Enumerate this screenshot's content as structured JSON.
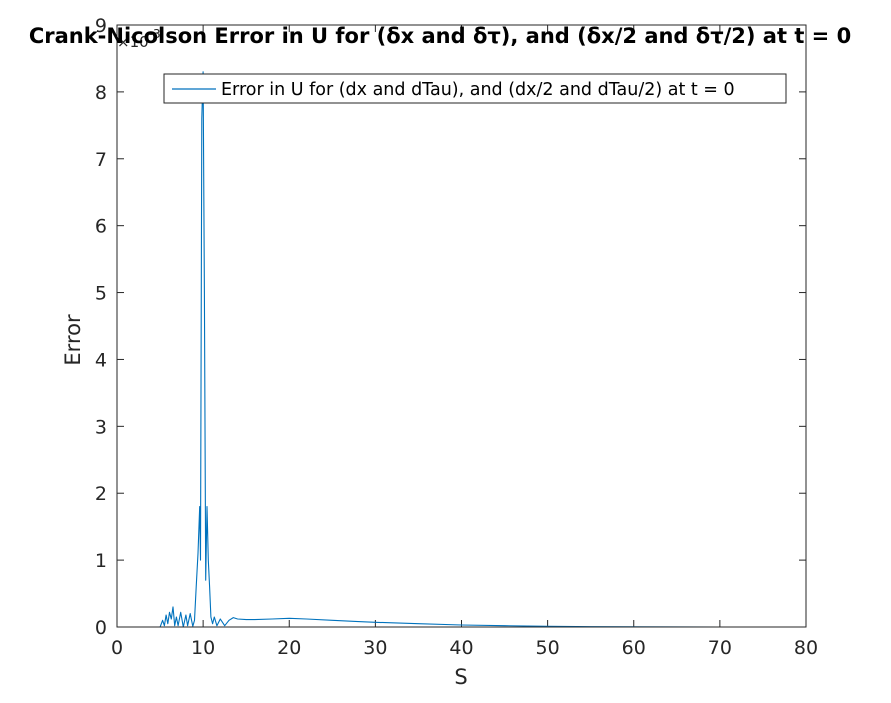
{
  "chart_data": {
    "type": "line",
    "title": "Crank-Nicolson Error in U for (δx and δτ), and (δx/2 and δτ/2) at t = 0",
    "xlabel": "S",
    "ylabel": "Error",
    "y_exponent_base": "×10",
    "y_exponent_power": "-3",
    "xlim": [
      0,
      80
    ],
    "ylim": [
      0,
      9
    ],
    "xticks": [
      "0",
      "10",
      "20",
      "30",
      "40",
      "50",
      "60",
      "70",
      "80"
    ],
    "yticks": [
      "0",
      "1",
      "2",
      "3",
      "4",
      "5",
      "6",
      "7",
      "8",
      "9"
    ],
    "grid": false,
    "legend_position": "top-right",
    "color": "#0072bd",
    "series": [
      {
        "name": "Error in U for (dx and dTau), and (dx/2 and dTau/2) at t = 0",
        "x": [
          0,
          5.0,
          5.3,
          5.5,
          5.7,
          5.9,
          6.1,
          6.3,
          6.5,
          6.7,
          6.9,
          7.1,
          7.4,
          7.7,
          8.0,
          8.2,
          8.5,
          8.8,
          9.0,
          9.2,
          9.4,
          9.6,
          9.7,
          9.85,
          10.0,
          10.15,
          10.3,
          10.45,
          10.6,
          10.75,
          10.9,
          11.1,
          11.3,
          11.6,
          12.0,
          12.5,
          13.0,
          13.5,
          14.0,
          15.0,
          16.0,
          18.0,
          20.0,
          22.0,
          25.0,
          28.0,
          30.0,
          35.0,
          40.0,
          45.0,
          50.0,
          55.0,
          60.0,
          65.0,
          70.0,
          74.0
        ],
        "y": [
          0,
          0.0,
          0.1,
          0.02,
          0.18,
          0.05,
          0.22,
          0.12,
          0.3,
          0.02,
          0.15,
          0.02,
          0.22,
          0.0,
          0.18,
          0.02,
          0.2,
          0.01,
          0.1,
          0.6,
          1.1,
          1.8,
          1.0,
          7.6,
          8.3,
          5.0,
          0.7,
          1.8,
          1.0,
          0.6,
          0.15,
          0.05,
          0.15,
          0.02,
          0.12,
          0.02,
          0.1,
          0.14,
          0.12,
          0.11,
          0.11,
          0.12,
          0.13,
          0.12,
          0.1,
          0.08,
          0.07,
          0.05,
          0.03,
          0.02,
          0.01,
          0.005,
          0.003,
          0.001,
          0.0,
          0.0
        ]
      }
    ]
  }
}
